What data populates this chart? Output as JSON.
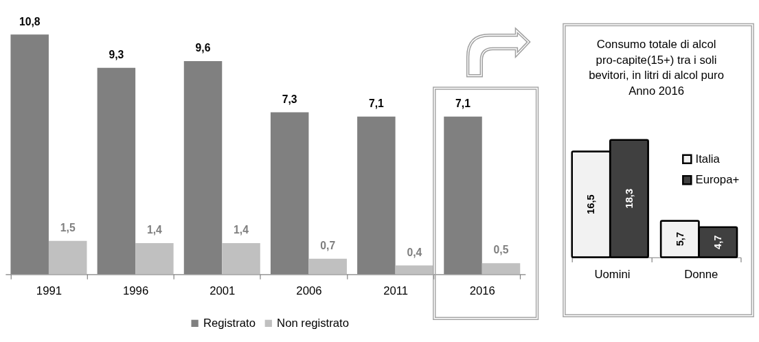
{
  "chart_data": [
    {
      "type": "bar",
      "categories": [
        "1991",
        "1996",
        "2001",
        "2006",
        "2011",
        "2016"
      ],
      "series": [
        {
          "name": "Registrato",
          "color": "#808080",
          "values": [
            10.8,
            9.3,
            9.6,
            7.3,
            7.1,
            7.1
          ],
          "value_labels": [
            "10,8",
            "9,3",
            "9,6",
            "7,3",
            "7,1",
            "7,1"
          ]
        },
        {
          "name": "Non registrato",
          "color": "#c0c0c0",
          "values": [
            1.5,
            1.4,
            1.4,
            0.7,
            0.4,
            0.5
          ],
          "value_labels": [
            "1,5",
            "1,4",
            "1,4",
            "0,7",
            "0,4",
            "0,5"
          ]
        }
      ],
      "tick_labels": "x",
      "legend": "bottom"
    },
    {
      "type": "bar",
      "title": "Consumo totale di alcol pro-capite(15+) tra i soli bevitori, in litri di alcol puro Anno 2016",
      "categories": [
        "Uomini",
        "Donne"
      ],
      "series": [
        {
          "name": "Italia",
          "color": "#f2f2f2",
          "values": [
            16.5,
            5.7
          ],
          "value_labels": [
            "16,5",
            "5,7"
          ]
        },
        {
          "name": "Europa+",
          "color": "#404040",
          "values": [
            18.3,
            4.7
          ],
          "value_labels": [
            "18,3",
            "4,7"
          ]
        }
      ],
      "tick_labels": "x",
      "legend": "right"
    }
  ]
}
